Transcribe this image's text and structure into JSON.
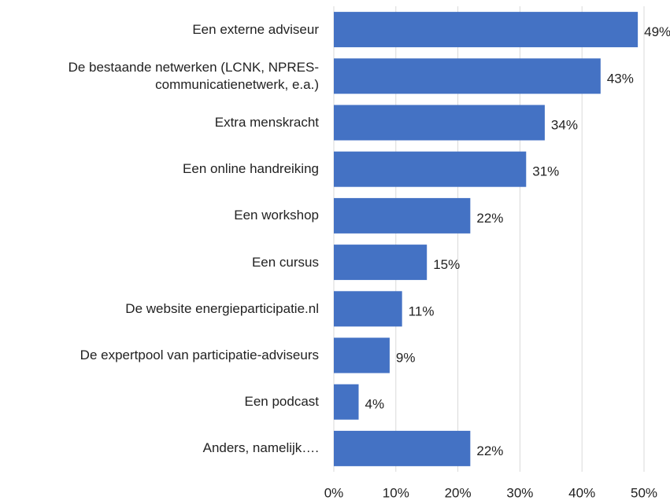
{
  "chart_data": {
    "type": "bar",
    "orientation": "horizontal",
    "categories": [
      "Een externe adviseur",
      "De bestaande netwerken (LCNK, NPRES-communicatienetwerk, e.a.)",
      "Extra menskracht",
      "Een online handreiking",
      "Een workshop",
      "Een cursus",
      "De website energieparticipatie.nl",
      "De expertpool van participatie-adviseurs",
      "Een podcast",
      "Anders, namelijk…."
    ],
    "values": [
      49,
      43,
      34,
      31,
      22,
      15,
      11,
      9,
      4,
      22
    ],
    "value_labels": [
      "49%",
      "43%",
      "34%",
      "31%",
      "22%",
      "15%",
      "11%",
      "9%",
      "4%",
      "22%"
    ],
    "color": "#4472c4",
    "xlim": [
      0,
      50
    ],
    "xticks": [
      {
        "value": 0,
        "label": "0%"
      },
      {
        "value": 10,
        "label": "10%"
      },
      {
        "value": 20,
        "label": "20%"
      },
      {
        "value": 30,
        "label": "30%"
      },
      {
        "value": 40,
        "label": "40%"
      },
      {
        "value": 50,
        "label": "50%"
      }
    ],
    "grid": true
  }
}
